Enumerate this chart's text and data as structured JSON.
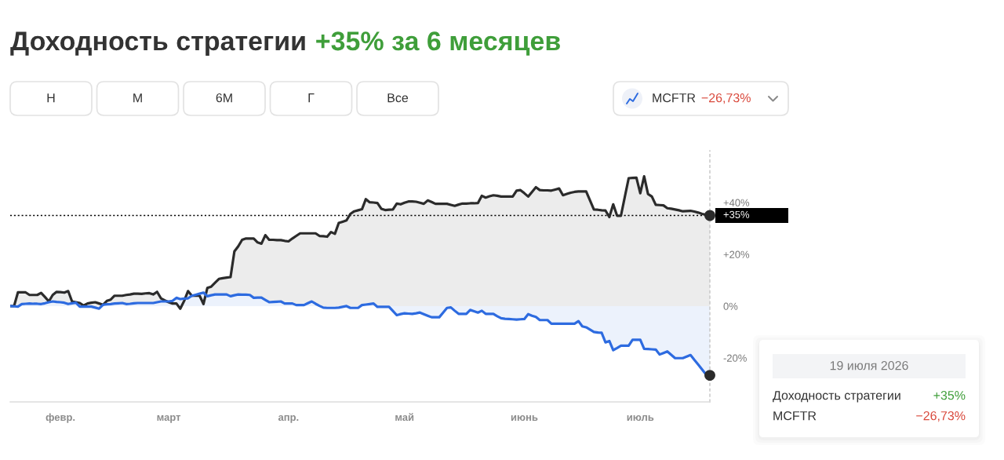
{
  "chart_data": {
    "type": "area",
    "title": "Доходность стратегии",
    "subtitle": "+35% за 6 месяцев",
    "annotations": [
      "Н",
      "М",
      "6М",
      "Г",
      "Все",
      "−26,73%",
      "19 июля 2026",
      "Доходность стратегии",
      "+35%",
      "MCFTR",
      "−26,73%"
    ],
    "legend": "top right",
    "categories": [
      null,
      null,
      null,
      null,
      null,
      null,
      null,
      null,
      null,
      null,
      null,
      null,
      null,
      "февр.",
      null,
      null,
      null,
      null,
      null,
      null,
      null,
      null,
      null,
      null,
      null,
      null,
      null,
      null,
      null,
      null,
      null,
      null,
      null,
      null,
      null,
      null,
      null,
      null,
      null,
      null,
      null,
      "март",
      null,
      null,
      null,
      null,
      null,
      null,
      null,
      null,
      null,
      null,
      null,
      null,
      null,
      null,
      null,
      null,
      null,
      null,
      null,
      null,
      null,
      null,
      null,
      null,
      null,
      null,
      null,
      null,
      null,
      null,
      "апр.",
      null,
      null,
      null,
      null,
      null,
      null,
      null,
      null,
      null,
      null,
      null,
      null,
      null,
      null,
      null,
      null,
      null,
      null,
      null,
      null,
      null,
      null,
      null,
      null,
      null,
      null,
      null,
      null,
      null,
      "май",
      null,
      null,
      null,
      null,
      null,
      null,
      null,
      null,
      null,
      null,
      null,
      null,
      null,
      null,
      null,
      null,
      null,
      null,
      null,
      null,
      null,
      null,
      null,
      null,
      null,
      null,
      null,
      null,
      null,
      null,
      "июнь",
      null,
      null,
      null,
      null,
      null,
      null,
      null,
      null,
      null,
      null,
      null,
      null,
      null,
      null,
      null,
      null,
      null,
      null,
      null,
      null,
      null,
      null,
      null,
      null,
      null,
      null,
      null,
      null,
      null,
      "июль",
      null,
      null,
      null,
      null,
      null,
      null,
      null,
      null,
      null,
      null,
      null,
      null,
      null,
      null,
      null,
      null,
      null,
      null
    ],
    "ylim": [
      -37,
      60
    ],
    "yticks": [
      {
        "value": 40,
        "label": "+40%"
      },
      {
        "value": 20,
        "label": "+20%"
      },
      {
        "value": 0,
        "label": "0%"
      },
      {
        "value": -20,
        "label": "-20%"
      }
    ],
    "ref_lines": [
      {
        "axis": "y",
        "value": 35,
        "label": "+35%",
        "color": "#000000",
        "line_style": "dotted"
      }
    ],
    "series": [
      {
        "color": "#2b2b2b",
        "values": [
          0,
          0,
          5.3,
          5.3,
          5.3,
          4.3,
          4.3,
          4.3,
          5.1,
          3.5,
          1.8,
          4.3,
          5.5,
          5.4,
          5.2,
          5.8,
          1.8,
          1.5,
          1.2,
          0.2,
          1.0,
          1.3,
          1.5,
          1.0,
          0.5,
          2.0,
          2.5,
          4.0,
          4.0,
          4.0,
          4.3,
          4.5,
          4.8,
          4.8,
          4.7,
          4.9,
          5.0,
          4.5,
          5.5,
          3.0,
          2.2,
          1.5,
          1.0,
          1.0,
          -1.0,
          2.0,
          5.8,
          4.0,
          4.0,
          4.0,
          0.8,
          7.0,
          7.5,
          9.0,
          10.5,
          10.8,
          11.0,
          11.2,
          21.1,
          23.1,
          25.6,
          26.1,
          26.1,
          26.1,
          24.6,
          24.1,
          27.4,
          25.6,
          25.6,
          25.5,
          25.5,
          25.2,
          25.0,
          26.1,
          27.1,
          28.1,
          28.1,
          28.1,
          28.1,
          28.1,
          27.1,
          27.0,
          26.8,
          28.6,
          27.9,
          32.1,
          32.6,
          33.1,
          35.6,
          36.6,
          37.0,
          37.4,
          41.3,
          40.1,
          40.0,
          39.8,
          37.6,
          37.1,
          37.2,
          37.3,
          39.6,
          39.3,
          39.9,
          40.4,
          40.4,
          40.3,
          39.9,
          39.5,
          40.8,
          40.2,
          39.5,
          39.5,
          39.5,
          39.5,
          39.1,
          38.7,
          39.2,
          39.6,
          39.6,
          39.7,
          39.7,
          39.8,
          42.6,
          41.9,
          42.4,
          42.8,
          42.6,
          42.3,
          42.3,
          42.3,
          42.3,
          44.6,
          44.8,
          43.6,
          42.3,
          44.1,
          45.9,
          44.8,
          44.7,
          44.7,
          44.6,
          45.0,
          45.4,
          42.8,
          43.3,
          43.8,
          44.1,
          44.3,
          44.3,
          44.3,
          40.8,
          37.3,
          37.2,
          37.0,
          36.9,
          34.4,
          39.3,
          34.9,
          34.9,
          42.2,
          49.4,
          49.5,
          49.6,
          43.6,
          50.1,
          43.3,
          42.3,
          39.1,
          39.0,
          38.9,
          37.8,
          37.6,
          37.3,
          37.0,
          36.6,
          36.7,
          36.8,
          36.5,
          36.1,
          35.6,
          35.3,
          35
        ]
      },
      {
        "name": "MCFTR",
        "color": "#2d6be0",
        "values": [
          0,
          -0.1,
          -0.2,
          0.8,
          0.9,
          1.0,
          0.9,
          0.9,
          0.8,
          1.1,
          1.5,
          1.8,
          1.6,
          1.5,
          1.3,
          0.8,
          1.1,
          1.3,
          -0.2,
          -0.2,
          -0.2,
          -0.2,
          -0.6,
          -1.0,
          0.5,
          0.7,
          0.8,
          1.0,
          1.1,
          1.2,
          0.8,
          0.9,
          1.1,
          1.2,
          1.2,
          1.2,
          1.2,
          1.2,
          1.5,
          1.8,
          1.8,
          1.8,
          2.0,
          3.2,
          2.7,
          2.9,
          3.0,
          4.0,
          4.4,
          4.8,
          5.2,
          3.8,
          4.2,
          4.5,
          4.5,
          4.5,
          4.5,
          3.8,
          4.2,
          4.5,
          4.4,
          4.4,
          4.3,
          3.2,
          3.3,
          3.3,
          2.4,
          1.5,
          1.6,
          1.7,
          1.8,
          1.0,
          1.0,
          1.0,
          0.4,
          0.4,
          0.4,
          1.1,
          1.8,
          0.9,
          0.1,
          -0.6,
          -0.7,
          -0.7,
          -0.7,
          -0.6,
          -0.3,
          0,
          -0.7,
          -0.7,
          -0.7,
          0.4,
          0.6,
          0.8,
          1.0,
          -0.3,
          -0.3,
          -0.3,
          -0.3,
          -1.9,
          -3.5,
          -3.1,
          -2.8,
          -2.9,
          -3.0,
          -2.8,
          -2.5,
          -3.1,
          -3.7,
          -4.3,
          -4.3,
          -4.3,
          -2.5,
          -0.7,
          -0.5,
          -1.8,
          -3.0,
          -3.0,
          -3.0,
          -1.5,
          -2.0,
          -2.5,
          -1.8,
          -3.0,
          -3.0,
          -3.0,
          -3.9,
          -4.7,
          -4.9,
          -5.0,
          -5.1,
          -5.2,
          -5.1,
          -5.0,
          -3.1,
          -3.7,
          -4.2,
          -5.4,
          -5.4,
          -5.4,
          -6.8,
          -6.8,
          -6.8,
          -6.8,
          -6.8,
          -6.8,
          -6.8,
          -5.8,
          -7.8,
          -8.2,
          -9.1,
          -10.0,
          -10.2,
          -10.3,
          -14.0,
          -13.5,
          -17.0,
          -16.2,
          -15.3,
          -15.3,
          -15.3,
          -13.0,
          -13.0,
          -13.0,
          -16.5,
          -16.6,
          -16.7,
          -16.8,
          -18.7,
          -18.1,
          -17.5,
          -18.8,
          -20.1,
          -20.1,
          -20.1,
          -19.5,
          -18.9,
          -20.8,
          -22.6,
          -24.5,
          -26.4,
          -26.73
        ]
      },
      {
        "type": "scatter",
        "color": "#2b2b2b",
        "values": [
          null,
          null,
          null,
          null,
          null,
          null,
          null,
          null,
          null,
          null,
          null,
          null,
          null,
          null,
          null,
          null,
          null,
          null,
          null,
          null,
          null,
          null,
          null,
          null,
          null,
          null,
          null,
          null,
          null,
          null,
          null,
          null,
          null,
          null,
          null,
          null,
          null,
          null,
          null,
          null,
          null,
          null,
          null,
          null,
          null,
          null,
          null,
          null,
          null,
          null,
          null,
          null,
          null,
          null,
          null,
          null,
          null,
          null,
          null,
          null,
          null,
          null,
          null,
          null,
          null,
          null,
          null,
          null,
          null,
          null,
          null,
          null,
          null,
          null,
          null,
          null,
          null,
          null,
          null,
          null,
          null,
          null,
          null,
          null,
          null,
          null,
          null,
          null,
          null,
          null,
          null,
          null,
          null,
          null,
          null,
          null,
          null,
          null,
          null,
          null,
          null,
          null,
          null,
          null,
          null,
          null,
          null,
          null,
          null,
          null,
          null,
          null,
          null,
          null,
          null,
          null,
          null,
          null,
          null,
          null,
          null,
          null,
          null,
          null,
          null,
          null,
          null,
          null,
          null,
          null,
          null,
          null,
          null,
          null,
          null,
          null,
          null,
          null,
          null,
          null,
          null,
          null,
          null,
          null,
          null,
          null,
          null,
          null,
          null,
          null,
          null,
          null,
          null,
          null,
          null,
          null,
          null,
          null,
          null,
          null,
          null,
          null,
          null,
          null,
          null,
          null,
          null,
          null,
          null,
          null,
          null,
          null,
          null,
          null,
          null,
          null,
          null,
          null,
          null,
          null,
          null,
          35
        ]
      },
      {
        "type": "scatter",
        "color": "#2b2b2b",
        "values": [
          null,
          null,
          null,
          null,
          null,
          null,
          null,
          null,
          null,
          null,
          null,
          null,
          null,
          null,
          null,
          null,
          null,
          null,
          null,
          null,
          null,
          null,
          null,
          null,
          null,
          null,
          null,
          null,
          null,
          null,
          null,
          null,
          null,
          null,
          null,
          null,
          null,
          null,
          null,
          null,
          null,
          null,
          null,
          null,
          null,
          null,
          null,
          null,
          null,
          null,
          null,
          null,
          null,
          null,
          null,
          null,
          null,
          null,
          null,
          null,
          null,
          null,
          null,
          null,
          null,
          null,
          null,
          null,
          null,
          null,
          null,
          null,
          null,
          null,
          null,
          null,
          null,
          null,
          null,
          null,
          null,
          null,
          null,
          null,
          null,
          null,
          null,
          null,
          null,
          null,
          null,
          null,
          null,
          null,
          null,
          null,
          null,
          null,
          null,
          null,
          null,
          null,
          null,
          null,
          null,
          null,
          null,
          null,
          null,
          null,
          null,
          null,
          null,
          null,
          null,
          null,
          null,
          null,
          null,
          null,
          null,
          null,
          null,
          null,
          null,
          null,
          null,
          null,
          null,
          null,
          null,
          null,
          null,
          null,
          null,
          null,
          null,
          null,
          null,
          null,
          null,
          null,
          null,
          null,
          null,
          null,
          null,
          null,
          null,
          null,
          null,
          null,
          null,
          null,
          null,
          null,
          null,
          null,
          null,
          null,
          null,
          null,
          null,
          null,
          null,
          null,
          null,
          null,
          null,
          null,
          null,
          null,
          null,
          null,
          null,
          null,
          null,
          null,
          null,
          null,
          null,
          -26.73
        ]
      }
    ]
  }
}
